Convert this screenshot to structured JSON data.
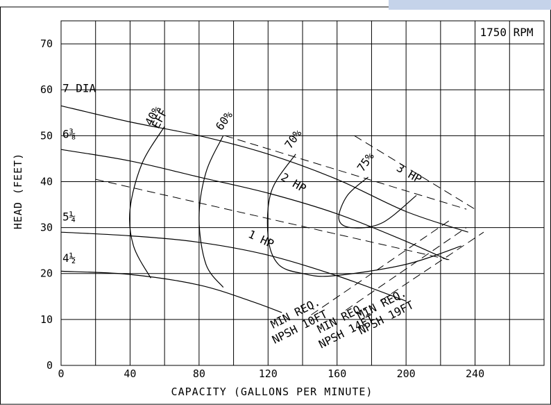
{
  "chart_data": {
    "type": "line",
    "xlabel": "CAPACITY (GALLONS PER MINUTE)",
    "ylabel": "HEAD (FEET)",
    "speed_label": "1750 RPM",
    "xlim": [
      0,
      280
    ],
    "ylim": [
      0,
      75
    ],
    "xticks": [
      0,
      40,
      80,
      120,
      160,
      200,
      240
    ],
    "xtick_labels": [
      "0",
      "40",
      "80",
      "120",
      "160",
      "200",
      "240"
    ],
    "yticks": [
      0,
      10,
      20,
      30,
      40,
      50,
      60,
      70
    ],
    "ytick_labels": [
      "0",
      "10",
      "20",
      "30",
      "40",
      "50",
      "60",
      "70"
    ],
    "grid": true,
    "impeller_curves": [
      {
        "label": "7 DIA",
        "points": [
          [
            0,
            56.5
          ],
          [
            40,
            53
          ],
          [
            80,
            50
          ],
          [
            120,
            46
          ],
          [
            160,
            40.5
          ],
          [
            200,
            33.5
          ],
          [
            236,
            29
          ]
        ]
      },
      {
        "label": "6⅜",
        "points": [
          [
            0,
            47
          ],
          [
            40,
            44.5
          ],
          [
            80,
            41
          ],
          [
            120,
            37.5
          ],
          [
            160,
            33
          ],
          [
            200,
            27
          ],
          [
            224,
            23
          ]
        ]
      },
      {
        "label": "5¼",
        "points": [
          [
            0,
            29
          ],
          [
            40,
            28.2
          ],
          [
            80,
            26.8
          ],
          [
            120,
            24
          ],
          [
            160,
            19.5
          ],
          [
            200,
            14
          ]
        ]
      },
      {
        "label": "4½",
        "points": [
          [
            0,
            20.5
          ],
          [
            40,
            19.8
          ],
          [
            80,
            17.5
          ],
          [
            110,
            14
          ],
          [
            128,
            11.5
          ]
        ]
      }
    ],
    "efficiency_curves": [
      {
        "label": "40% EFF",
        "points": [
          [
            60,
            52
          ],
          [
            47,
            44
          ],
          [
            40,
            34
          ],
          [
            42,
            26
          ],
          [
            52,
            19
          ]
        ]
      },
      {
        "label": "60%",
        "points": [
          [
            94,
            50
          ],
          [
            84,
            42
          ],
          [
            80,
            32
          ],
          [
            84,
            22
          ],
          [
            94,
            17
          ]
        ]
      },
      {
        "label": "70%",
        "points": [
          [
            136,
            46
          ],
          [
            122,
            38
          ],
          [
            120,
            28
          ],
          [
            126,
            22
          ],
          [
            140,
            20
          ],
          [
            158,
            19.5
          ],
          [
            200,
            22
          ],
          [
            232,
            26
          ]
        ]
      },
      {
        "label": "75%",
        "points": [
          [
            178,
            41
          ],
          [
            166,
            37
          ],
          [
            161,
            32
          ],
          [
            168,
            30
          ],
          [
            186,
            31
          ],
          [
            206,
            37
          ]
        ]
      }
    ],
    "horsepower_lines": [
      {
        "label": "1 HP",
        "points": [
          [
            20,
            40.5
          ],
          [
            225,
            23
          ]
        ]
      },
      {
        "label": "2 HP",
        "points": [
          [
            95,
            50
          ],
          [
            235,
            34
          ]
        ]
      },
      {
        "label": "3 HP",
        "points": [
          [
            170,
            50
          ],
          [
            240,
            34
          ]
        ]
      }
    ],
    "npsh_curves": [
      {
        "label_line1": "MIN REQ.",
        "label_line2": "NPSH 10FT",
        "points": [
          [
            145,
            11
          ],
          [
            225,
            31.5
          ]
        ]
      },
      {
        "label_line1": "MIN REQ.",
        "label_line2": "NPSH 14FT",
        "points": [
          [
            165,
            12
          ],
          [
            235,
            30
          ]
        ]
      },
      {
        "label_line1": "MIN REQ.",
        "label_line2": "NPSH 19FT",
        "points": [
          [
            185,
            14
          ],
          [
            245,
            29
          ]
        ]
      }
    ]
  }
}
